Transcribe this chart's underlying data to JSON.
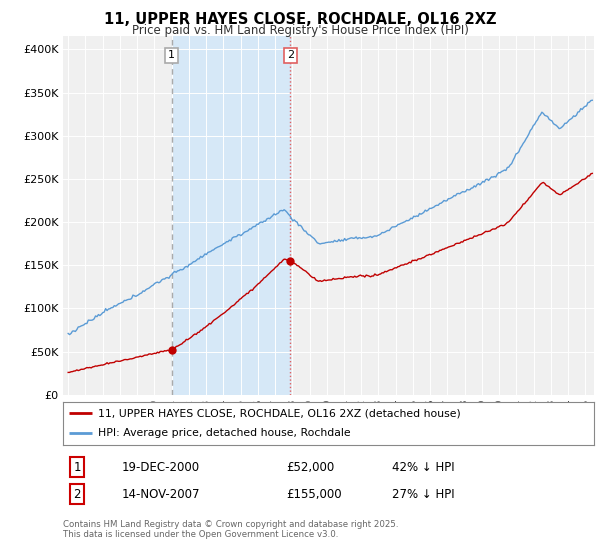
{
  "title": "11, UPPER HAYES CLOSE, ROCHDALE, OL16 2XZ",
  "subtitle": "Price paid vs. HM Land Registry's House Price Index (HPI)",
  "ylabel_ticks": [
    "£0",
    "£50K",
    "£100K",
    "£150K",
    "£200K",
    "£250K",
    "£300K",
    "£350K",
    "£400K"
  ],
  "ytick_values": [
    0,
    50000,
    100000,
    150000,
    200000,
    250000,
    300000,
    350000,
    400000
  ],
  "ylim": [
    0,
    415000
  ],
  "xlim_start": 1994.7,
  "xlim_end": 2025.5,
  "hpi_color": "#5b9bd5",
  "price_color": "#c00000",
  "sale1_date": 2001.0,
  "sale1_price": 52000,
  "sale2_date": 2007.88,
  "sale2_price": 155000,
  "vline1_color": "#aaaaaa",
  "vline2_color": "#e06060",
  "vspan_color": "#d6e8f7",
  "annotation1_border": "#aaaaaa",
  "annotation2_border": "#e06060",
  "legend_line1": "11, UPPER HAYES CLOSE, ROCHDALE, OL16 2XZ (detached house)",
  "legend_line2": "HPI: Average price, detached house, Rochdale",
  "table_row1": [
    "1",
    "19-DEC-2000",
    "£52,000",
    "42% ↓ HPI"
  ],
  "table_row2": [
    "2",
    "14-NOV-2007",
    "£155,000",
    "27% ↓ HPI"
  ],
  "footnote": "Contains HM Land Registry data © Crown copyright and database right 2025.\nThis data is licensed under the Open Government Licence v3.0.",
  "background_color": "#ffffff",
  "plot_bg_color": "#f0f0f0"
}
